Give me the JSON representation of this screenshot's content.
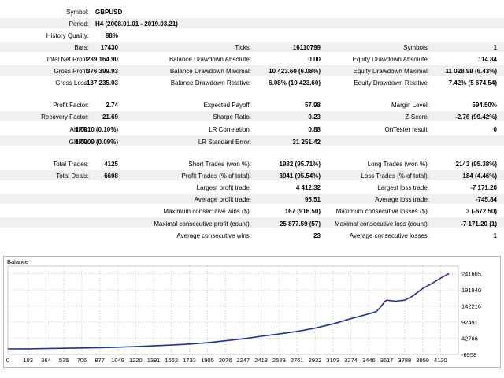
{
  "summary": {
    "symbol_label": "Symbol:",
    "symbol": "GBPUSD",
    "period_label": "Period:",
    "period": "H4 (2008.01.01 - 2019.03.21)",
    "quality_label": "History Quality:",
    "quality": "98%"
  },
  "stats": {
    "bars_label": "Bars:",
    "bars": "17430",
    "ticks_label": "Ticks:",
    "ticks": "16110799",
    "symbols_label": "Symbols:",
    "symbols": "1",
    "net_profit_label": "Total Net Profit:",
    "net_profit": "239 164.90",
    "bal_dd_abs_label": "Balance Drawdown Absolute:",
    "bal_dd_abs": "0.00",
    "eq_dd_abs_label": "Equity Drawdown Absolute:",
    "eq_dd_abs": "114.84",
    "gross_profit_label": "Gross Profit:",
    "gross_profit": "376 399.93",
    "bal_dd_max_label": "Balance Drawdown Maximal:",
    "bal_dd_max": "10 423.60 (6.08%)",
    "eq_dd_max_label": "Equity Drawdown Maximal:",
    "eq_dd_max": "11 028.98 (6.43%)",
    "gross_loss_label": "Gross Loss:",
    "gross_loss": "-137 235.03",
    "bal_dd_rel_label": "Balance Drawdown Relative:",
    "bal_dd_rel": "6.08% (10 423.60)",
    "eq_dd_rel_label": "Equity Drawdown Relative:",
    "eq_dd_rel": "7.42% (5 674.54)",
    "profit_factor_label": "Profit Factor:",
    "profit_factor": "2.74",
    "expected_payoff_label": "Expected Payoff:",
    "expected_payoff": "57.98",
    "margin_level_label": "Margin Level:",
    "margin_level": "594.50%",
    "recovery_factor_label": "Recovery Factor:",
    "recovery_factor": "21.69",
    "sharpe_label": "Sharpe Ratio:",
    "sharpe": "0.23",
    "zscore_label": "Z-Score:",
    "zscore": "-2.76 (99.42%)",
    "ahpr_label": "AHPR:",
    "ahpr": "1.0010 (0.10%)",
    "lr_corr_label": "LR Correlation:",
    "lr_corr": "0.88",
    "ontester_label": "OnTester result:",
    "ontester": "0",
    "ghpr_label": "GHPR:",
    "ghpr": "1.0009 (0.09%)",
    "lr_se_label": "LR Standard Error:",
    "lr_se": "31 251.42"
  },
  "trades": {
    "total_trades_label": "Total Trades:",
    "total_trades": "4125",
    "short_label": "Short Trades (won %):",
    "short": "1982 (95.71%)",
    "long_label": "Long Trades (won %):",
    "long": "2143 (95.38%)",
    "total_deals_label": "Total Deals:",
    "total_deals": "6608",
    "profit_trades_label": "Profit Trades (% of total):",
    "profit_trades": "3941 (95.54%)",
    "loss_trades_label": "Loss Trades (% of total):",
    "loss_trades": "184 (4.46%)",
    "largest_profit_label": "Largest profit trade:",
    "largest_profit": "4 412.32",
    "largest_loss_label": "Largest loss trade:",
    "largest_loss": "-7 171.20",
    "avg_profit_label": "Average profit trade:",
    "avg_profit": "95.51",
    "avg_loss_label": "Average loss trade:",
    "avg_loss": "-745.84",
    "max_cons_wins_label": "Maximum consecutive wins ($):",
    "max_cons_wins": "167 (916.50)",
    "max_cons_losses_label": "Maximum consecutive losses ($):",
    "max_cons_losses": "3 (-672.50)",
    "maximal_cons_profit_label": "Maximal consecutive profit (count):",
    "maximal_cons_profit": "25 877.59 (57)",
    "maximal_cons_loss_label": "Maximal consecutive loss (count):",
    "maximal_cons_loss": "-7 171.20 (1)",
    "avg_cons_wins_label": "Average consecutive wins:",
    "avg_cons_wins": "23",
    "avg_cons_losses_label": "Average consecutive losses:",
    "avg_cons_losses": "1"
  },
  "chart_data": {
    "type": "line",
    "title": "Balance",
    "series": [
      {
        "color": "#1f2f9f",
        "x": [
          0,
          193,
          364,
          535,
          706,
          877,
          1049,
          1220,
          1391,
          1562,
          1733,
          1905,
          2076,
          2247,
          2418,
          2589,
          2761,
          2932,
          3103,
          3274,
          3446,
          3517,
          3560,
          3600,
          3617,
          3700,
          3788,
          3860,
          3959,
          4050,
          4130,
          4210
        ],
        "y": [
          10000,
          10400,
          11200,
          12000,
          13000,
          14000,
          15500,
          17300,
          19500,
          22000,
          25000,
          29000,
          35000,
          41000,
          49000,
          56000,
          64000,
          74000,
          87000,
          103000,
          118000,
          125000,
          140000,
          157000,
          160000,
          157000,
          160000,
          172000,
          196000,
          212000,
          228000,
          242000
        ]
      }
    ],
    "x_ticks": [
      "0",
      "193",
      "364",
      "535",
      "706",
      "877",
      "1049",
      "1220",
      "1391",
      "1562",
      "1733",
      "1905",
      "2076",
      "2247",
      "2418",
      "2589",
      "2761",
      "2932",
      "3103",
      "3274",
      "3446",
      "3617",
      "3788",
      "3959",
      "4130"
    ],
    "y_ticks": [
      "241665",
      "191940",
      "142216",
      "92491",
      "42766",
      "-6958"
    ],
    "y_tick_values": [
      241665,
      191940,
      142216,
      92491,
      42766,
      -6958
    ],
    "xlim": [
      0,
      4300
    ],
    "ylim": [
      -6958,
      265000
    ],
    "grid": true
  }
}
